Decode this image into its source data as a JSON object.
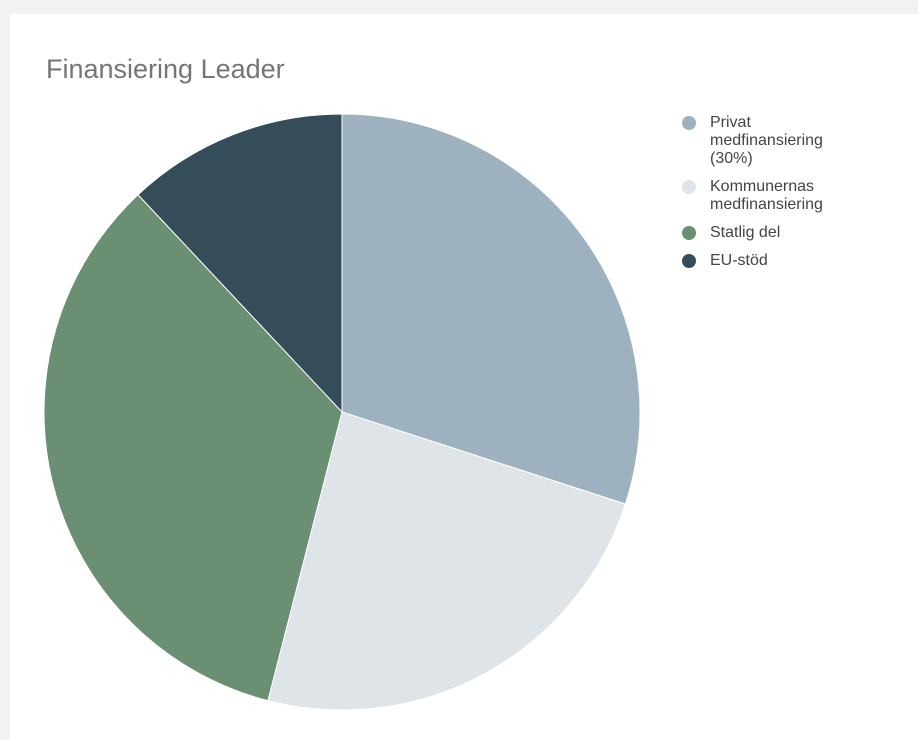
{
  "chart_data": {
    "type": "pie",
    "title": "Finansiering Leader",
    "legend_position": "right",
    "slices": [
      {
        "label": "Privat\nmedfinansiering\n(30%)",
        "value": 30,
        "color": "#9db1bf"
      },
      {
        "label": "Kommunernas\nmedfinansiering",
        "value": 24,
        "color": "#dfe4e8"
      },
      {
        "label": "Statlig del",
        "value": 34,
        "color": "#6b8f73"
      },
      {
        "label": "EU-stöd",
        "value": 12,
        "color": "#354d58"
      }
    ]
  }
}
